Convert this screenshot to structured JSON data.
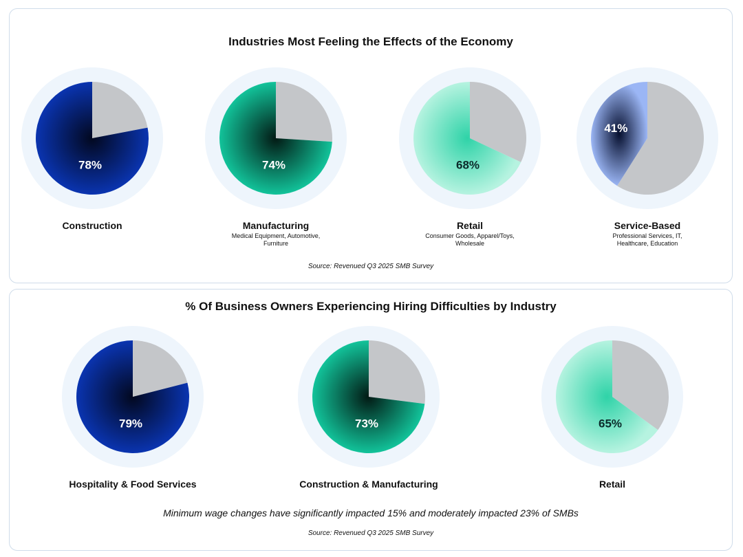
{
  "chart_data": [
    {
      "type": "pie",
      "title": "Industries Most Feeling the Effects of the Economy",
      "source": "Source: Revenued Q3 2025 SMB Survey",
      "series": [
        {
          "name": "Construction",
          "value": 78,
          "label": "78%",
          "sublabel": "",
          "color": "#0a2f9c",
          "label_color": "#ffffff"
        },
        {
          "name": "Manufacturing",
          "value": 74,
          "label": "74%",
          "sublabel": "Medical Equipment, Automotive, Furniture",
          "color": "#12b890",
          "label_color": "#ffffff"
        },
        {
          "name": "Retail",
          "value": 68,
          "label": "68%",
          "sublabel": "Consumer Goods, Apparel/Toys, Wholesale",
          "color": "#7fe8c8",
          "label_color": "#0b2a2a"
        },
        {
          "name": "Service-Based",
          "value": 41,
          "label": "41%",
          "sublabel": "Professional Services, IT, Healthcare, Education",
          "color": "#8aa8ee",
          "label_color": "#ffffff"
        }
      ]
    },
    {
      "type": "pie",
      "title": "% Of Business Owners Experiencing Hiring Difficulties by Industry",
      "note": "Minimum wage changes have significantly impacted 15% and moderately impacted 23% of SMBs",
      "source": "Source: Revenued Q3 2025 SMB Survey",
      "series": [
        {
          "name": "Hospitality & Food Services",
          "value": 79,
          "label": "79%",
          "color": "#0a2f9c",
          "label_color": "#ffffff"
        },
        {
          "name": "Construction & Manufacturing",
          "value": 73,
          "label": "73%",
          "color": "#12b890",
          "label_color": "#ffffff"
        },
        {
          "name": "Retail",
          "value": 65,
          "label": "65%",
          "color": "#7fe8c8",
          "label_color": "#0b2a2a"
        }
      ]
    }
  ],
  "colors": {
    "remainder": "#c4c6c9",
    "halo": "#eef5fc",
    "panel_border": "#cfdcea"
  }
}
